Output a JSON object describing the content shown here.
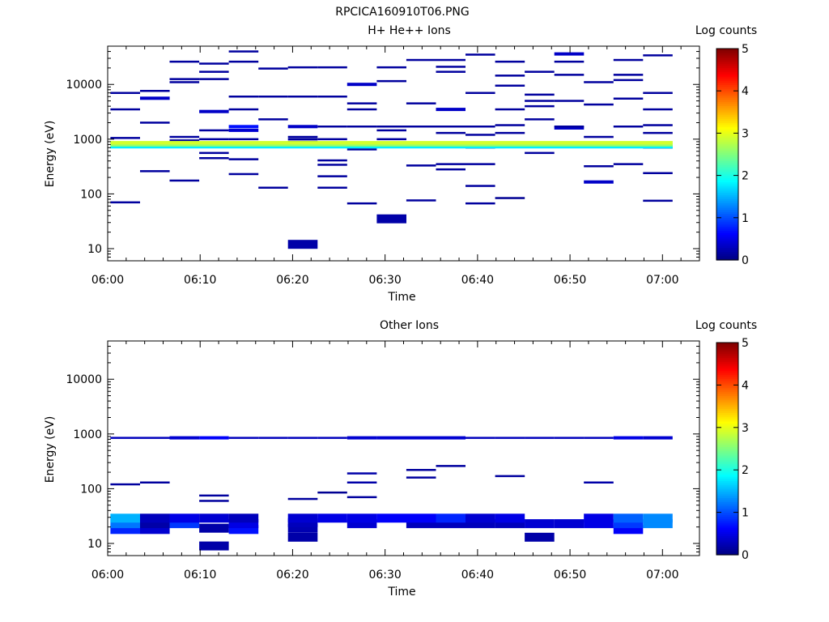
{
  "page_title": "RPCICA160910T06.PNG",
  "colorbar": {
    "label": "Log counts",
    "ticks": [
      "0",
      "1",
      "2",
      "3",
      "4",
      "5"
    ],
    "range": [
      0,
      5
    ],
    "colormap": [
      "#00007f",
      "#0000ff",
      "#007fff",
      "#00ffff",
      "#7fff7f",
      "#ffff00",
      "#ff7f00",
      "#ff0000",
      "#7f0000"
    ]
  },
  "time_ticks": [
    "06:00",
    "06:10",
    "06:20",
    "06:30",
    "06:40",
    "06:50",
    "07:00"
  ],
  "chart_data": [
    {
      "type": "heatmap",
      "title": "H+ He++ Ions",
      "xlabel": "Time",
      "ylabel": "Energy (eV)",
      "yscale": "log",
      "ylim": [
        6,
        50000
      ],
      "xlim_minutes": [
        0,
        64
      ],
      "y_ticks": [
        "10",
        "100",
        "1000",
        "10000"
      ],
      "x_tick_minutes": [
        0,
        10,
        20,
        30,
        40,
        50,
        60
      ],
      "bin_width_minutes": 3.2,
      "bin_start_minutes": [
        0.3,
        3.5,
        6.7,
        9.9,
        13.1,
        16.3,
        19.5,
        22.7,
        25.9,
        29.1,
        32.3,
        35.5,
        38.7,
        41.9,
        45.1,
        48.3,
        51.5,
        54.7,
        57.9
      ],
      "columns": [
        [
          [
            70,
            0.15
          ],
          [
            1050,
            0.15
          ],
          [
            3500,
            0.15
          ],
          [
            7000,
            0.15
          ]
        ],
        [
          [
            260,
            0.15
          ],
          [
            2000,
            0.15
          ],
          [
            5600,
            0.35
          ],
          [
            7600,
            0.15
          ]
        ],
        [
          [
            175,
            0.15
          ],
          [
            950,
            0.15
          ],
          [
            1100,
            0.15
          ],
          [
            11000,
            0.15
          ],
          [
            12500,
            0.15
          ],
          [
            26000,
            0.15
          ]
        ],
        [
          [
            450,
            0.15
          ],
          [
            560,
            0.15
          ],
          [
            1000,
            0.15
          ],
          [
            1450,
            0.15
          ],
          [
            3200,
            0.35
          ],
          [
            12500,
            0.15
          ],
          [
            17000,
            0.15
          ],
          [
            24000,
            0.15
          ]
        ],
        [
          [
            230,
            0.15
          ],
          [
            430,
            0.15
          ],
          [
            1000,
            0.15
          ],
          [
            1450,
            0.4
          ],
          [
            1700,
            0.7
          ],
          [
            3500,
            0.15
          ],
          [
            6000,
            0.15
          ],
          [
            26000,
            0.15
          ],
          [
            40000,
            0.15
          ]
        ],
        [
          [
            130,
            0.15
          ],
          [
            2300,
            0.15
          ],
          [
            6000,
            0.15
          ],
          [
            19500,
            0.15
          ]
        ],
        [
          [
            12,
            0.2
          ],
          [
            900,
            0.15
          ],
          [
            1000,
            0.15
          ],
          [
            1100,
            0.15
          ],
          [
            1700,
            0.35
          ],
          [
            6000,
            0.15
          ],
          [
            20500,
            0.15
          ]
        ],
        [
          [
            130,
            0.15
          ],
          [
            210,
            0.15
          ],
          [
            340,
            0.15
          ],
          [
            410,
            0.15
          ],
          [
            1000,
            0.15
          ],
          [
            1700,
            0.15
          ],
          [
            6000,
            0.15
          ],
          [
            20500,
            0.15
          ]
        ],
        [
          [
            67,
            0.15
          ],
          [
            650,
            0.15
          ],
          [
            1700,
            0.15
          ],
          [
            3500,
            0.15
          ],
          [
            4500,
            0.15
          ],
          [
            10000,
            0.35
          ]
        ],
        [
          [
            35,
            0.2
          ],
          [
            1000,
            0.15
          ],
          [
            1450,
            0.15
          ],
          [
            1700,
            0.15
          ],
          [
            11500,
            0.15
          ],
          [
            20500,
            0.15
          ]
        ],
        [
          [
            76,
            0.15
          ],
          [
            330,
            0.15
          ],
          [
            1700,
            0.15
          ],
          [
            4500,
            0.15
          ],
          [
            28000,
            0.15
          ]
        ],
        [
          [
            280,
            0.15
          ],
          [
            350,
            0.15
          ],
          [
            1300,
            0.15
          ],
          [
            1700,
            0.15
          ],
          [
            3500,
            0.35
          ],
          [
            17000,
            0.15
          ],
          [
            21000,
            0.15
          ],
          [
            28000,
            0.15
          ]
        ],
        [
          [
            67,
            0.15
          ],
          [
            140,
            0.15
          ],
          [
            350,
            0.15
          ],
          [
            700,
            0.15
          ],
          [
            1200,
            0.15
          ],
          [
            1700,
            0.15
          ],
          [
            7000,
            0.15
          ],
          [
            35000,
            0.15
          ]
        ],
        [
          [
            84,
            0.1
          ],
          [
            1300,
            0.15
          ],
          [
            1800,
            0.15
          ],
          [
            3500,
            0.15
          ],
          [
            9500,
            0.15
          ],
          [
            14500,
            0.15
          ],
          [
            26000,
            0.15
          ]
        ],
        [
          [
            560,
            0.15
          ],
          [
            2300,
            0.15
          ],
          [
            4000,
            0.15
          ],
          [
            5000,
            0.15
          ],
          [
            6500,
            0.15
          ],
          [
            17000,
            0.15
          ]
        ],
        [
          [
            1600,
            0.35
          ],
          [
            1700,
            0.15
          ],
          [
            5000,
            0.15
          ],
          [
            15000,
            0.15
          ],
          [
            26000,
            0.15
          ],
          [
            36000,
            0.35
          ]
        ],
        [
          [
            165,
            0.35
          ],
          [
            320,
            0.15
          ],
          [
            1100,
            0.15
          ],
          [
            4300,
            0.15
          ],
          [
            11000,
            0.15
          ]
        ],
        [
          [
            350,
            0.15
          ],
          [
            1700,
            0.15
          ],
          [
            5500,
            0.15
          ],
          [
            12000,
            0.15
          ],
          [
            15000,
            0.15
          ],
          [
            28000,
            0.15
          ]
        ],
        [
          [
            75,
            0.15
          ],
          [
            240,
            0.15
          ],
          [
            700,
            0.15
          ],
          [
            1300,
            0.15
          ],
          [
            1800,
            0.15
          ],
          [
            3500,
            0.15
          ],
          [
            7000,
            0.15
          ],
          [
            34000,
            0.15
          ]
        ]
      ],
      "bands": [
        {
          "energy": 730,
          "value": 1.8
        },
        {
          "energy": 790,
          "value": 2.6
        },
        {
          "energy": 860,
          "value": 2.9
        }
      ]
    },
    {
      "type": "heatmap",
      "title": "Other Ions",
      "xlabel": "Time",
      "ylabel": "Energy (eV)",
      "yscale": "log",
      "ylim": [
        6,
        50000
      ],
      "xlim_minutes": [
        0,
        64
      ],
      "y_ticks": [
        "10",
        "100",
        "1000",
        "10000"
      ],
      "x_tick_minutes": [
        0,
        10,
        20,
        30,
        40,
        50,
        60
      ],
      "bin_width_minutes": 3.2,
      "bin_start_minutes": [
        0.3,
        3.5,
        6.7,
        9.9,
        13.1,
        16.3,
        19.5,
        22.7,
        25.9,
        29.1,
        32.3,
        35.5,
        38.7,
        41.9,
        45.1,
        48.3,
        51.5,
        54.7,
        57.9
      ],
      "columns": [
        [
          [
            120,
            0.15
          ],
          [
            850,
            0.3
          ],
          [
            18,
            0.8
          ],
          [
            23,
            1.2
          ],
          [
            29,
            1.5
          ]
        ],
        [
          [
            130,
            0.15
          ],
          [
            850,
            0.3
          ],
          [
            18,
            0.4
          ],
          [
            23,
            0.2
          ],
          [
            29,
            0.3
          ]
        ],
        [
          [
            850,
            0.4
          ],
          [
            23,
            0.9
          ],
          [
            29,
            0.5
          ]
        ],
        [
          [
            60,
            0.15
          ],
          [
            75,
            0.15
          ],
          [
            850,
            0.6
          ],
          [
            9,
            0.2
          ],
          [
            19,
            0.2
          ],
          [
            29,
            0.4
          ]
        ],
        [
          [
            850,
            0.3
          ],
          [
            18,
            0.7
          ],
          [
            23,
            0.5
          ],
          [
            29,
            0.3
          ]
        ],
        [
          [
            850,
            0.3
          ]
        ],
        [
          [
            65,
            0.15
          ],
          [
            850,
            0.3
          ],
          [
            13,
            0.2
          ],
          [
            19,
            0.25
          ],
          [
            24,
            0.3
          ],
          [
            29,
            0.4
          ]
        ],
        [
          [
            85,
            0.1
          ],
          [
            850,
            0.3
          ],
          [
            29,
            0.5
          ]
        ],
        [
          [
            70,
            0.15
          ],
          [
            130,
            0.2
          ],
          [
            190,
            0.2
          ],
          [
            850,
            0.4
          ],
          [
            23,
            0.4
          ],
          [
            29,
            0.5
          ]
        ],
        [
          [
            850,
            0.4
          ],
          [
            29,
            0.6
          ]
        ],
        [
          [
            160,
            0.15
          ],
          [
            220,
            0.15
          ],
          [
            850,
            0.4
          ],
          [
            23,
            0.3
          ],
          [
            29,
            0.6
          ]
        ],
        [
          [
            260,
            0.15
          ],
          [
            850,
            0.4
          ],
          [
            23,
            0.3
          ],
          [
            29,
            0.8
          ]
        ],
        [
          [
            850,
            0.3
          ],
          [
            23,
            0.3
          ],
          [
            29,
            0.4
          ]
        ],
        [
          [
            170,
            0.15
          ],
          [
            850,
            0.3
          ],
          [
            23,
            0.3
          ],
          [
            29,
            0.5
          ]
        ],
        [
          [
            850,
            0.3
          ],
          [
            13,
            0.2
          ],
          [
            23,
            0.4
          ]
        ],
        [
          [
            850,
            0.3
          ],
          [
            23,
            0.4
          ]
        ],
        [
          [
            130,
            0.2
          ],
          [
            850,
            0.3
          ],
          [
            23,
            0.5
          ],
          [
            29,
            0.5
          ]
        ],
        [
          [
            850,
            0.5
          ],
          [
            18,
            0.6
          ],
          [
            23,
            0.9
          ],
          [
            29,
            1.1
          ]
        ],
        [
          [
            850,
            0.4
          ],
          [
            23,
            1.3
          ],
          [
            29,
            1.3
          ]
        ]
      ],
      "bands": []
    }
  ]
}
